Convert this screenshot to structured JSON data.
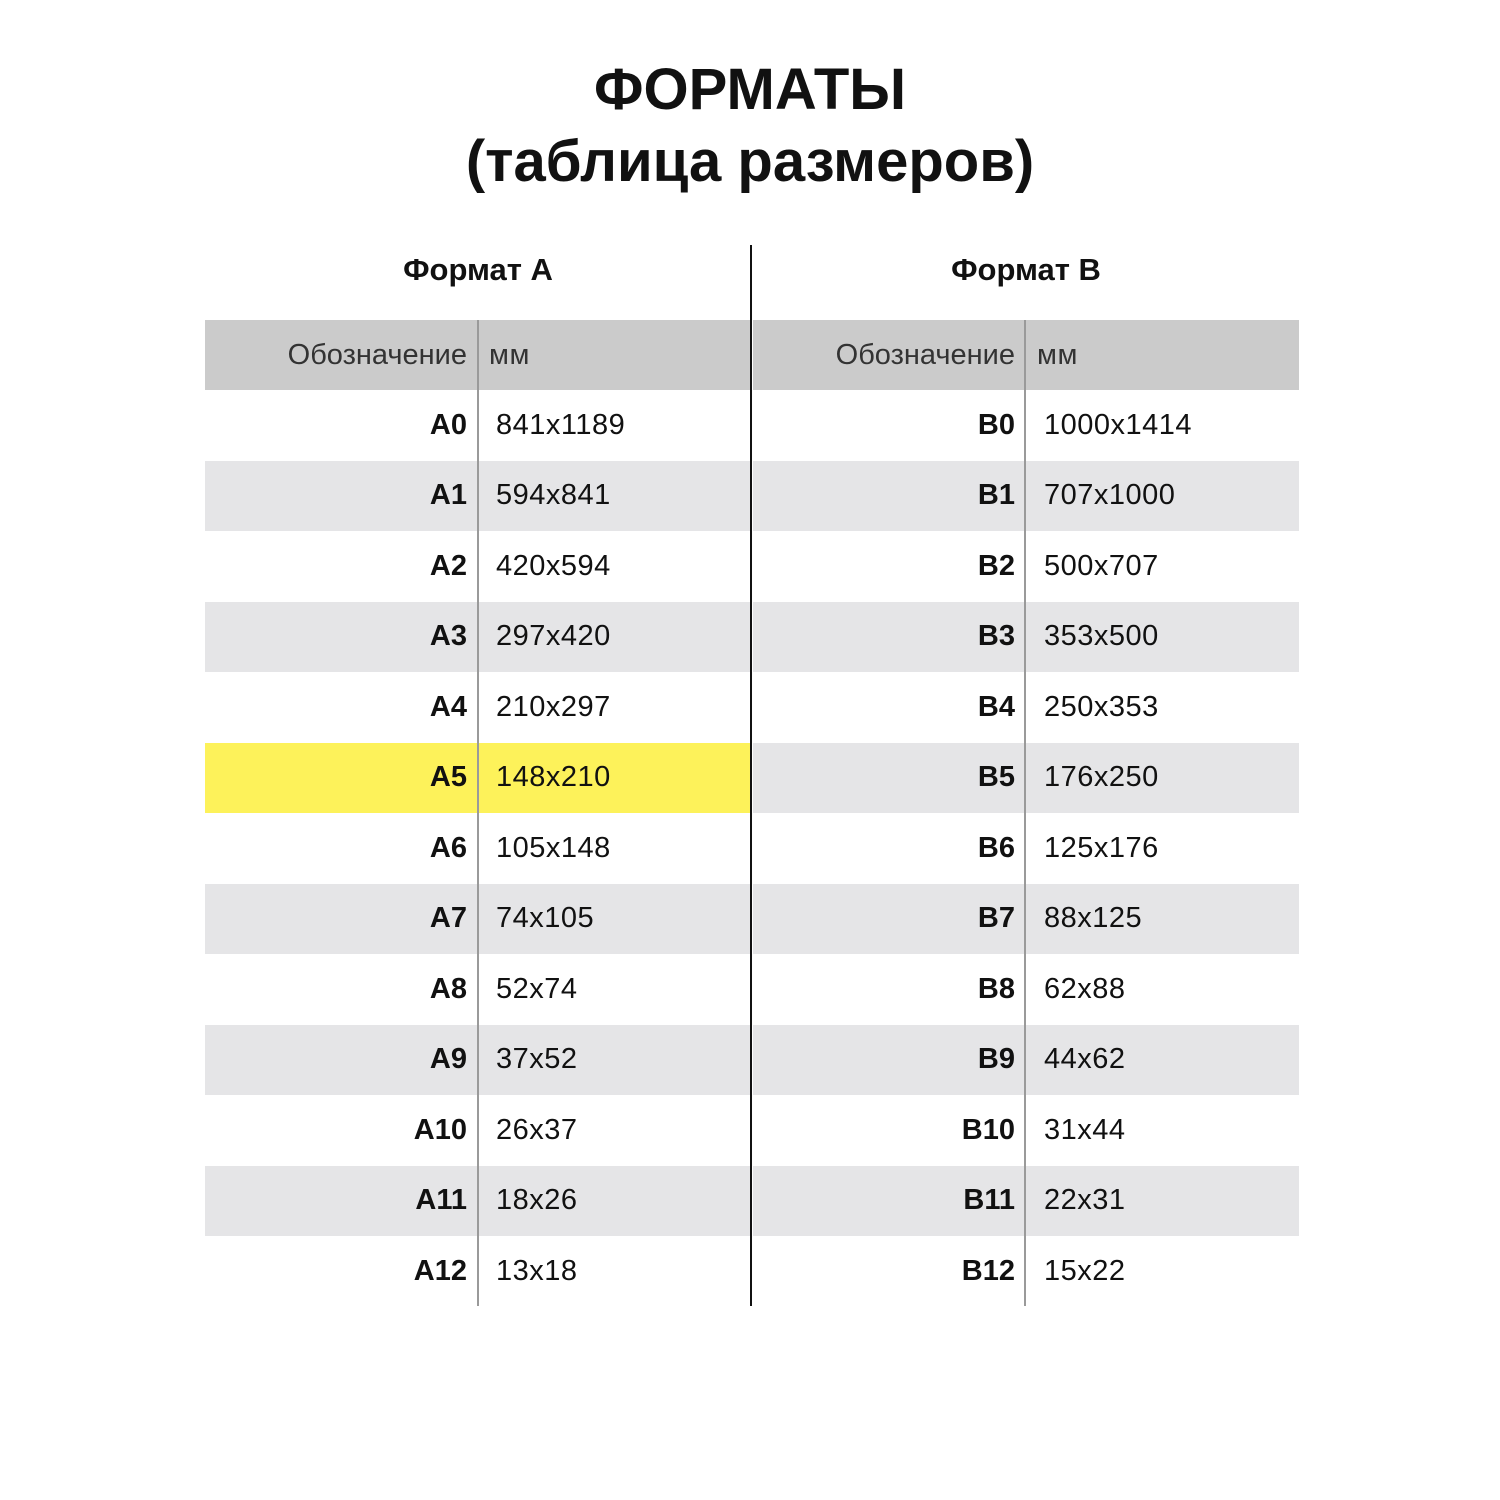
{
  "title_line1": "ФОРМАТЫ",
  "title_line2": "(таблица размеров)",
  "highlight_color": "#fdf25a",
  "tables": [
    {
      "heading": "Формат А",
      "col1": "Обозначение",
      "col2": "мм",
      "highlighted_row": 5,
      "rows": [
        [
          "A0",
          "841x1189"
        ],
        [
          "A1",
          "594x841"
        ],
        [
          "A2",
          "420x594"
        ],
        [
          "A3",
          "297x420"
        ],
        [
          "A4",
          "210x297"
        ],
        [
          "A5",
          "148x210"
        ],
        [
          "A6",
          "105x148"
        ],
        [
          "A7",
          "74x105"
        ],
        [
          "A8",
          "52x74"
        ],
        [
          "A9",
          "37x52"
        ],
        [
          "A10",
          "26x37"
        ],
        [
          "A11",
          "18x26"
        ],
        [
          "A12",
          "13x18"
        ]
      ]
    },
    {
      "heading": "Формат В",
      "col1": "Обозначение",
      "col2": "мм",
      "highlighted_row": null,
      "rows": [
        [
          "B0",
          "1000x1414"
        ],
        [
          "B1",
          "707x1000"
        ],
        [
          "B2",
          "500x707"
        ],
        [
          "B3",
          "353x500"
        ],
        [
          "B4",
          "250x353"
        ],
        [
          "B5",
          "176x250"
        ],
        [
          "B6",
          "125x176"
        ],
        [
          "B7",
          "88x125"
        ],
        [
          "B8",
          "62x88"
        ],
        [
          "B9",
          "44x62"
        ],
        [
          "B10",
          "31x44"
        ],
        [
          "B11",
          "22x31"
        ],
        [
          "B12",
          "15x22"
        ]
      ]
    }
  ]
}
